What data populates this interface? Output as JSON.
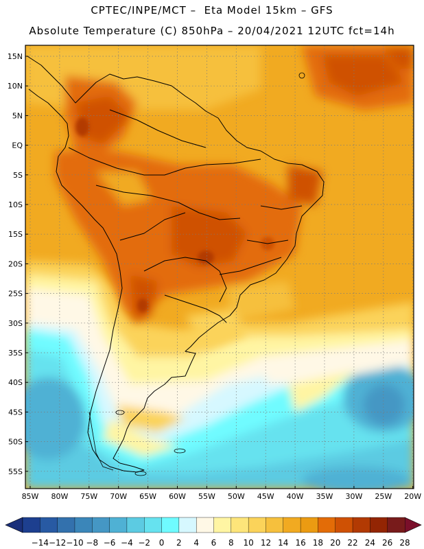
{
  "header": {
    "title_line1": "CPTEC/INPE/MCT –  Eta Model 15km – GFS",
    "title_line2": "Absolute Temperature (C) 850hPa – 20/04/2021 12UTC fct=14h"
  },
  "map": {
    "lat_labels": [
      "15N",
      "10N",
      "5N",
      "EQ",
      "5S",
      "10S",
      "15S",
      "20S",
      "25S",
      "30S",
      "35S",
      "40S",
      "45S",
      "50S",
      "55S"
    ],
    "lon_labels": [
      "85W",
      "80W",
      "75W",
      "70W",
      "65W",
      "60W",
      "55W",
      "50W",
      "45W",
      "40W",
      "35W",
      "30W",
      "25W",
      "20W"
    ],
    "grid": "dotted",
    "region": "South America"
  },
  "colorbar": {
    "labels": [
      "-14",
      "-12",
      "-10",
      "-8",
      "-6",
      "-4",
      "-2",
      "0",
      "2",
      "4",
      "6",
      "8",
      "10",
      "12",
      "14",
      "16",
      "18",
      "20",
      "22",
      "24",
      "26",
      "28"
    ],
    "colors": [
      "#1d3f8f",
      "#285aa3",
      "#3371ad",
      "#3b86b9",
      "#4597c4",
      "#4fb1d4",
      "#5ccbe2",
      "#66e2ef",
      "#6ffbff",
      "#d6f8ff",
      "#fff8e6",
      "#fff5a3",
      "#fde57a",
      "#fbd35a",
      "#f6c03d",
      "#f1aa21",
      "#eb9b12",
      "#e36c07",
      "#cf5104",
      "#b23a03",
      "#932503",
      "#781b1b"
    ],
    "left_arrow_color": "#1a2f7a",
    "right_arrow_color": "#7a0f2a"
  }
}
